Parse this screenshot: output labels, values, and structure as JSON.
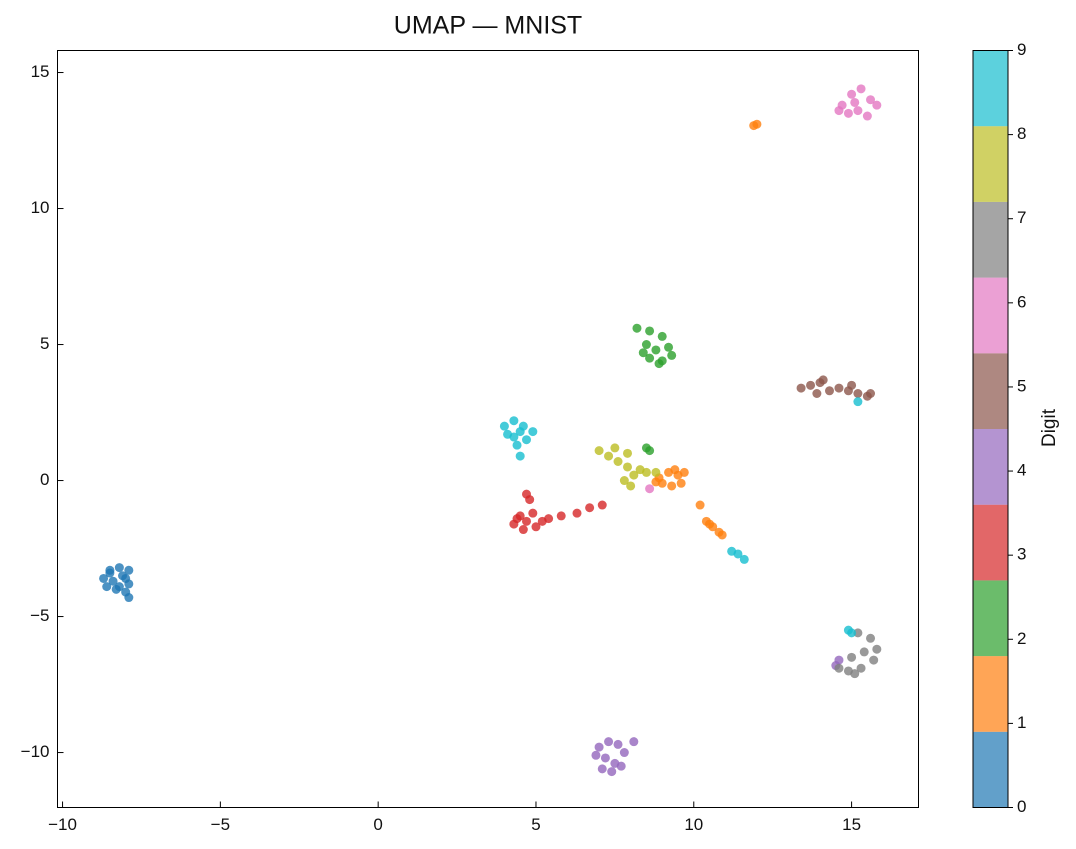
{
  "chart_data": {
    "type": "scatter",
    "title": "UMAP — MNIST",
    "xlim": [
      -10.16,
      17.12
    ],
    "ylim": [
      -12.02,
      15.81
    ],
    "xticks": [
      {
        "value": -10,
        "label": "−10"
      },
      {
        "value": -5,
        "label": "−5"
      },
      0,
      5,
      10,
      15
    ],
    "yticks": [
      {
        "value": -10,
        "label": "−10"
      },
      {
        "value": -5,
        "label": "−5"
      },
      0,
      5,
      10,
      15
    ],
    "colorbar": {
      "label": "Digit",
      "clim": [
        0,
        9
      ],
      "ticks": [
        0,
        1,
        2,
        3,
        4,
        5,
        6,
        7,
        8,
        9
      ],
      "colors": [
        "#1f77b4",
        "#ff7f0e",
        "#2ca02c",
        "#d62728",
        "#9467bd",
        "#8c564b",
        "#e377c2",
        "#7f7f7f",
        "#bcbd22",
        "#17becf"
      ]
    },
    "series": [
      {
        "value": 0,
        "x": [
          -8.5,
          -8.2,
          -7.9,
          -8.7,
          -8.4,
          -8.1,
          -7.9,
          -8.6,
          -8.3,
          -8.0,
          -7.9,
          -8.5,
          -8.2,
          -8.0
        ],
        "y": [
          -3.3,
          -3.2,
          -3.3,
          -3.6,
          -3.7,
          -3.5,
          -3.8,
          -3.9,
          -4.0,
          -4.1,
          -4.3,
          -3.4,
          -3.9,
          -3.6
        ]
      },
      {
        "value": 1,
        "x": [
          8.9,
          9.2,
          9.5,
          9.6,
          9.3,
          9.0,
          8.8,
          9.4,
          9.7,
          10.2,
          10.4,
          10.6,
          10.8,
          10.5,
          10.9,
          11.9,
          12.0
        ],
        "y": [
          0.1,
          0.3,
          0.2,
          -0.1,
          -0.2,
          -0.1,
          -0.05,
          0.4,
          0.3,
          -0.9,
          -1.5,
          -1.7,
          -1.9,
          -1.6,
          -2.0,
          13.05,
          13.1
        ]
      },
      {
        "value": 2,
        "x": [
          8.2,
          8.6,
          9.0,
          8.5,
          8.8,
          9.2,
          9.3,
          8.6,
          8.9,
          8.4,
          9.0,
          8.5,
          8.6
        ],
        "y": [
          5.6,
          5.5,
          5.3,
          5.0,
          4.8,
          4.9,
          4.6,
          4.5,
          4.3,
          4.7,
          4.4,
          1.2,
          1.1
        ]
      },
      {
        "value": 3,
        "x": [
          4.5,
          4.7,
          4.3,
          4.9,
          5.2,
          4.6,
          4.8,
          4.7,
          5.4,
          4.4,
          5.0,
          5.8,
          6.3,
          6.7,
          7.1
        ],
        "y": [
          -1.3,
          -1.5,
          -1.6,
          -1.2,
          -1.5,
          -1.8,
          -0.7,
          -0.5,
          -1.4,
          -1.4,
          -1.7,
          -1.3,
          -1.2,
          -1.0,
          -0.9
        ]
      },
      {
        "value": 4,
        "x": [
          7.0,
          7.3,
          7.6,
          8.1,
          7.8,
          7.2,
          7.5,
          6.9,
          7.4,
          7.7,
          7.1,
          14.6,
          14.5
        ],
        "y": [
          -9.8,
          -9.6,
          -9.7,
          -9.6,
          -10.0,
          -10.2,
          -10.4,
          -10.1,
          -10.7,
          -10.5,
          -10.6,
          -6.6,
          -6.8
        ]
      },
      {
        "value": 5,
        "x": [
          13.4,
          13.7,
          14.0,
          14.3,
          14.6,
          14.9,
          15.2,
          15.5,
          13.9,
          14.1,
          15.0,
          15.6
        ],
        "y": [
          3.4,
          3.5,
          3.6,
          3.3,
          3.4,
          3.3,
          3.2,
          3.1,
          3.2,
          3.7,
          3.5,
          3.2
        ]
      },
      {
        "value": 6,
        "x": [
          14.7,
          15.0,
          15.3,
          15.6,
          15.8,
          15.2,
          14.9,
          15.5,
          15.1,
          14.6,
          8.6
        ],
        "y": [
          13.8,
          14.2,
          14.4,
          14.0,
          13.8,
          13.6,
          13.5,
          13.4,
          13.9,
          13.6,
          -0.3
        ]
      },
      {
        "value": 7,
        "x": [
          15.2,
          15.6,
          15.8,
          15.7,
          15.3,
          14.9,
          14.6,
          15.0,
          15.4,
          15.1
        ],
        "y": [
          -5.6,
          -5.8,
          -6.2,
          -6.6,
          -6.9,
          -7.0,
          -6.9,
          -6.5,
          -6.3,
          -7.1
        ]
      },
      {
        "value": 8,
        "x": [
          7.0,
          7.3,
          7.6,
          7.9,
          8.1,
          8.0,
          7.8,
          8.3,
          8.5,
          7.5,
          7.9,
          8.8
        ],
        "y": [
          1.1,
          0.9,
          0.7,
          0.5,
          0.2,
          -0.2,
          0.0,
          0.4,
          0.3,
          1.2,
          1.0,
          0.3
        ]
      },
      {
        "value": 9,
        "x": [
          4.0,
          4.3,
          4.6,
          4.9,
          4.7,
          4.3,
          4.1,
          4.5,
          4.4,
          4.5,
          11.2,
          11.4,
          11.6,
          15.0,
          14.9,
          15.2
        ],
        "y": [
          2.0,
          2.2,
          2.0,
          1.8,
          1.5,
          1.6,
          1.7,
          1.8,
          1.3,
          0.9,
          -2.6,
          -2.7,
          -2.9,
          -5.6,
          -5.5,
          2.9
        ]
      }
    ]
  }
}
